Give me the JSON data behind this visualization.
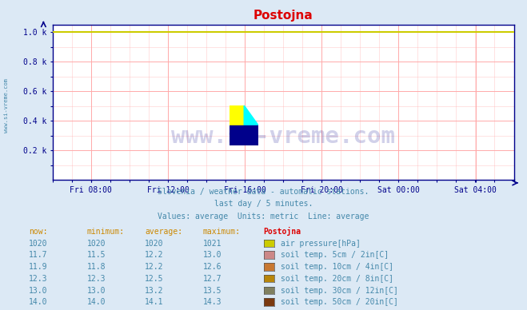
{
  "title": "Postojna",
  "title_color": "#dd0000",
  "bg_color": "#dce9f5",
  "plot_bg_color": "#ffffff",
  "grid_color_major": "#ffaaaa",
  "axis_color": "#00008b",
  "tick_color": "#00008b",
  "ytick_labels": [
    "0.2 k",
    "0.4 k",
    "0.6 k",
    "0.8 k",
    "1.0 k"
  ],
  "ytick_positions": [
    0.2,
    0.4,
    0.6,
    0.8,
    1.0
  ],
  "xtick_labels": [
    "Fri 08:00",
    "Fri 12:00",
    "Fri 16:00",
    "Fri 20:00",
    "Sat 00:00",
    "Sat 04:00"
  ],
  "xtick_positions": [
    0.083,
    0.25,
    0.417,
    0.583,
    0.75,
    0.917
  ],
  "ylim": [
    0,
    1.05
  ],
  "xlim": [
    0,
    1.0
  ],
  "line_y": 1.0,
  "line_color": "#cccc00",
  "watermark_text": "www.si-vreme.com",
  "watermark_color": "#00008b",
  "watermark_alpha": 0.18,
  "subtitle1": "Slovenia / weather data - automatic stations.",
  "subtitle2": "last day / 5 minutes.",
  "subtitle3": "Values: average  Units: metric  Line: average",
  "subtitle_color": "#4488aa",
  "table_header": [
    "now:",
    "minimum:",
    "average:",
    "maximum:",
    "Postojna"
  ],
  "table_rows": [
    [
      "1020",
      "1020",
      "1020",
      "1021",
      "air pressure[hPa]"
    ],
    [
      "11.7",
      "11.5",
      "12.2",
      "13.0",
      "soil temp. 5cm / 2in[C]"
    ],
    [
      "11.9",
      "11.8",
      "12.2",
      "12.6",
      "soil temp. 10cm / 4in[C]"
    ],
    [
      "12.3",
      "12.3",
      "12.5",
      "12.7",
      "soil temp. 20cm / 8in[C]"
    ],
    [
      "13.0",
      "13.0",
      "13.2",
      "13.5",
      "soil temp. 30cm / 12in[C]"
    ],
    [
      "14.0",
      "14.0",
      "14.1",
      "14.3",
      "soil temp. 50cm / 20in[C]"
    ]
  ],
  "legend_colors": [
    "#cccc00",
    "#cc8888",
    "#c87832",
    "#b8860b",
    "#808060",
    "#7b3a10"
  ],
  "table_text_color": "#4488aa",
  "table_header_color": "#cc8800",
  "logo_yellow": "#ffff00",
  "logo_cyan": "#00ffff",
  "logo_blue": "#00008b",
  "sidebar_text": "www.si-vreme.com",
  "sidebar_color": "#4488aa"
}
